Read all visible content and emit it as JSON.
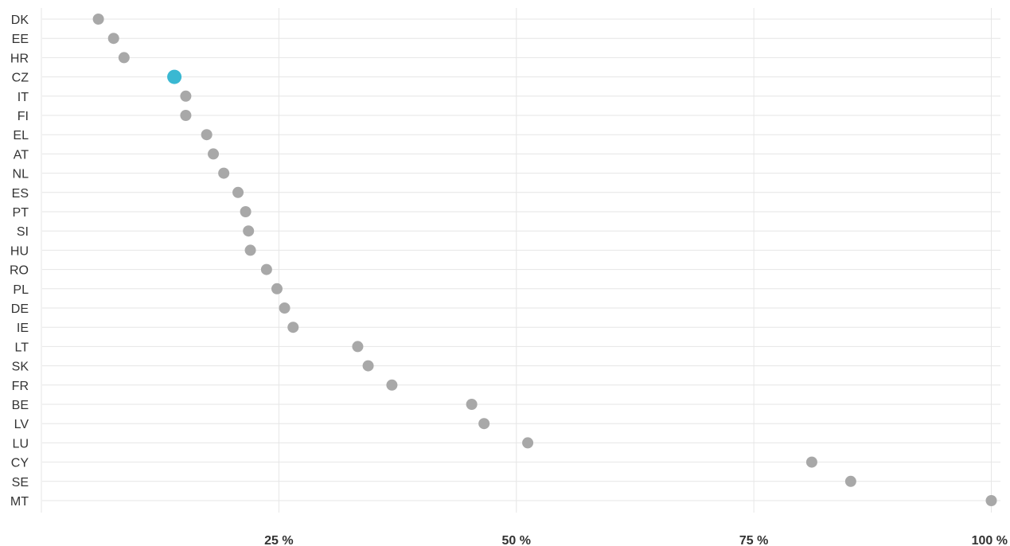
{
  "chart_data": {
    "type": "scatter",
    "title": "",
    "xlabel": "",
    "ylabel": "",
    "categories": [
      "DK",
      "EE",
      "HR",
      "CZ",
      "IT",
      "FI",
      "EL",
      "AT",
      "NL",
      "ES",
      "PT",
      "SI",
      "HU",
      "RO",
      "PL",
      "DE",
      "IE",
      "LT",
      "SK",
      "FR",
      "BE",
      "LV",
      "LU",
      "CY",
      "SE",
      "MT"
    ],
    "values": [
      6.0,
      7.6,
      8.7,
      14.0,
      15.2,
      15.2,
      17.4,
      18.1,
      19.2,
      20.7,
      21.5,
      21.8,
      22.0,
      23.7,
      24.8,
      25.6,
      26.5,
      33.3,
      34.4,
      36.9,
      45.3,
      46.6,
      51.2,
      81.1,
      85.2,
      100.0
    ],
    "highlight_category": "CZ",
    "highlight_color": "#3ab8d2",
    "point_color": "#a8a8a8",
    "grid_color": "#e6e6e6",
    "xlim": [
      0,
      100
    ],
    "xticks": [
      25,
      50,
      75,
      100
    ],
    "xtick_labels": [
      "25 %",
      "50 %",
      "75 %",
      "100 %"
    ],
    "grid": true
  }
}
